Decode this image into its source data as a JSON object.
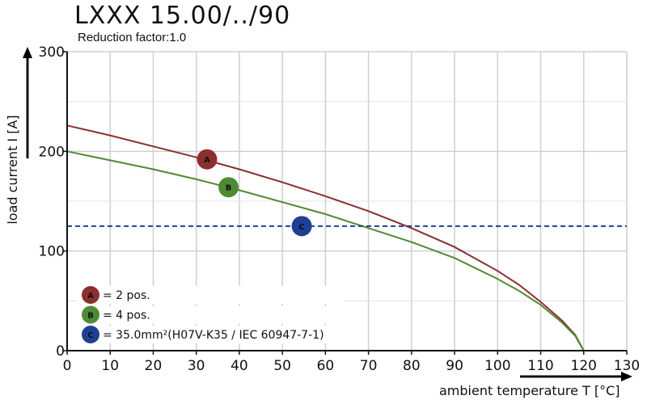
{
  "header": {
    "title": "LXXX 15.00/../90",
    "subtitle": "Reduction factor:1.0"
  },
  "chart_data": {
    "type": "line",
    "xlabel": "ambient temperature T [°C]",
    "ylabel": "load current I [A]",
    "xlim": [
      0,
      130
    ],
    "ylim": [
      0,
      300
    ],
    "xticks": [
      0,
      10,
      20,
      30,
      40,
      50,
      60,
      70,
      80,
      90,
      100,
      110,
      120,
      130
    ],
    "yticks": [
      0,
      100,
      200,
      300
    ],
    "grid": true,
    "series": [
      {
        "name": "A",
        "label": "= 2 pos.",
        "color": "#8b2f2f",
        "x": [
          0,
          10,
          20,
          30,
          40,
          50,
          60,
          70,
          80,
          90,
          100,
          105,
          110,
          115,
          118,
          120
        ],
        "y": [
          226,
          216,
          205,
          194,
          182,
          169,
          155,
          140,
          123,
          104,
          80,
          66,
          49,
          30,
          16,
          0
        ],
        "marker_x": 32.5,
        "marker_y": 192
      },
      {
        "name": "B",
        "label": "= 4 pos.",
        "color": "#4f8a35",
        "x": [
          0,
          10,
          20,
          30,
          40,
          50,
          60,
          70,
          80,
          90,
          100,
          105,
          110,
          115,
          118,
          120
        ],
        "y": [
          200,
          191,
          182,
          172,
          161,
          149,
          137,
          123,
          109,
          93,
          72,
          60,
          46,
          28,
          15,
          0
        ],
        "marker_x": 37.5,
        "marker_y": 164
      },
      {
        "name": "C",
        "label": "= 35.0mm²(H07V-K35 / IEC 60947-7-1)",
        "color": "#1f3f94",
        "style": "dashed",
        "x": [
          0,
          130
        ],
        "y": [
          125,
          125
        ],
        "marker_x": 54.5,
        "marker_y": 125
      }
    ],
    "legend_position": "bottom-left"
  }
}
